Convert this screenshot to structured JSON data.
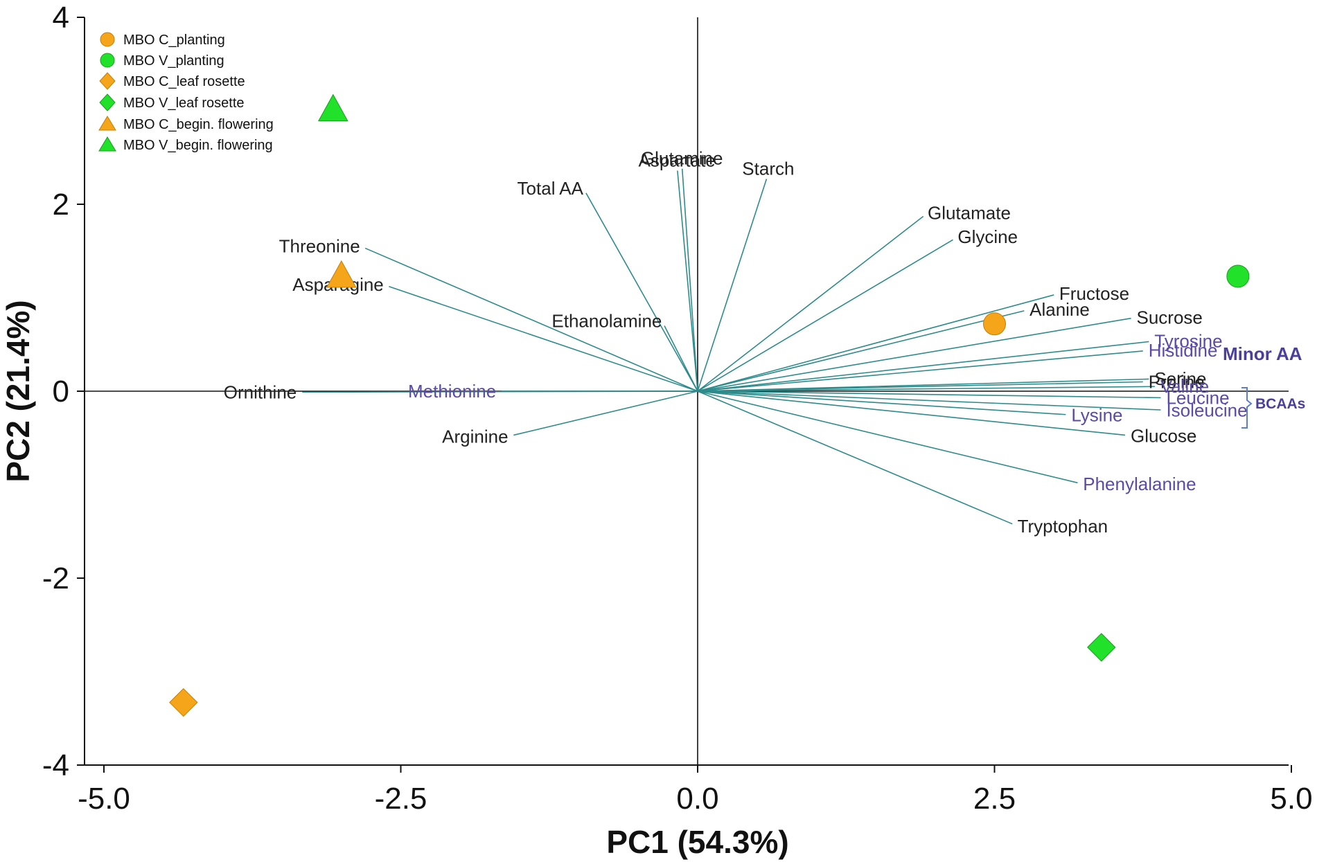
{
  "chart_data": {
    "type": "biplot",
    "xlabel": "PC1 (54.3%)",
    "ylabel": "PC2 (21.4%)",
    "xlim": [
      -5.0,
      5.0
    ],
    "ylim": [
      -4.0,
      4.0
    ],
    "xticks": [
      -5.0,
      -2.5,
      0.0,
      2.5,
      5.0
    ],
    "xtick_labels": [
      "-5.0",
      "-2.5",
      "0.0",
      "2.5",
      "5.0"
    ],
    "yticks": [
      -4,
      -2,
      0,
      2,
      4
    ],
    "ytick_labels": [
      "-4",
      "-2",
      "0",
      "2",
      "4"
    ],
    "colors": {
      "vector": "#2e8b8b",
      "minor_aa": "#5b4aa8",
      "orange": "#f5a51a",
      "green": "#22e12a",
      "axis": "#111111"
    },
    "scores": [
      {
        "name": "MBO C_planting",
        "shape": "circle",
        "color": "#f5a51a",
        "x": 2.5,
        "y": 0.72
      },
      {
        "name": "MBO V_planting",
        "shape": "circle",
        "color": "#22e12a",
        "x": 4.55,
        "y": 1.23
      },
      {
        "name": "MBO C_leaf rosette",
        "shape": "diamond",
        "color": "#f5a51a",
        "x": -4.33,
        "y": -3.33
      },
      {
        "name": "MBO V_leaf rosette",
        "shape": "diamond",
        "color": "#22e12a",
        "x": 3.4,
        "y": -2.74
      },
      {
        "name": "MBO C_begin. flowering",
        "shape": "triangle",
        "color": "#f5a51a",
        "x": -3.0,
        "y": 1.23
      },
      {
        "name": "MBO V_begin. flowering",
        "shape": "triangle",
        "color": "#22e12a",
        "x": -3.07,
        "y": 3.01
      }
    ],
    "loadings": [
      {
        "name": "Total AA",
        "x": -0.94,
        "y": 2.12,
        "minor": false
      },
      {
        "name": "Aspartate",
        "x": -0.17,
        "y": 2.36,
        "minor": false
      },
      {
        "name": "Glutamine",
        "x": -0.13,
        "y": 2.38,
        "minor": false
      },
      {
        "name": "Starch",
        "x": 0.58,
        "y": 2.27,
        "minor": false
      },
      {
        "name": "Glutamate",
        "x": 1.9,
        "y": 1.87,
        "minor": false
      },
      {
        "name": "Glycine",
        "x": 2.15,
        "y": 1.62,
        "minor": false
      },
      {
        "name": "Fructose",
        "x": 3.0,
        "y": 1.03,
        "minor": false
      },
      {
        "name": "Alanine",
        "x": 2.75,
        "y": 0.86,
        "minor": false
      },
      {
        "name": "Sucrose",
        "x": 3.65,
        "y": 0.78,
        "minor": false
      },
      {
        "name": "Tyrosine",
        "x": 3.8,
        "y": 0.53,
        "minor": true
      },
      {
        "name": "Histidine",
        "x": 3.75,
        "y": 0.43,
        "minor": true
      },
      {
        "name": "Proline",
        "x": 3.75,
        "y": 0.1,
        "minor": false
      },
      {
        "name": "Serine",
        "x": 3.8,
        "y": 0.13,
        "minor": false
      },
      {
        "name": "Valine",
        "x": 3.85,
        "y": 0.05,
        "minor": true
      },
      {
        "name": "Leucine",
        "x": 3.9,
        "y": -0.07,
        "minor": true
      },
      {
        "name": "Lysine",
        "x": 3.1,
        "y": -0.25,
        "minor": true
      },
      {
        "name": "Isoleucine",
        "x": 3.9,
        "y": -0.2,
        "minor": true
      },
      {
        "name": "Glucose",
        "x": 3.6,
        "y": -0.47,
        "minor": false
      },
      {
        "name": "Phenylalanine",
        "x": 3.2,
        "y": -0.98,
        "minor": true
      },
      {
        "name": "Tryptophan",
        "x": 2.65,
        "y": -1.42,
        "minor": false
      },
      {
        "name": "Threonine",
        "x": -2.8,
        "y": 1.53,
        "minor": false
      },
      {
        "name": "Asparagine",
        "x": -2.6,
        "y": 1.12,
        "minor": false
      },
      {
        "name": "Ethanolamine",
        "x": -0.28,
        "y": 0.7,
        "minor": false
      },
      {
        "name": "Methionine",
        "x": -1.65,
        "y": 0.0,
        "minor": true
      },
      {
        "name": "Ornithine",
        "x": -3.33,
        "y": -0.01,
        "minor": false
      },
      {
        "name": "Arginine",
        "x": -1.55,
        "y": -0.47,
        "minor": false
      }
    ],
    "annotations": [
      {
        "text": "Minor AA"
      },
      {
        "text": "BCAAs"
      }
    ]
  }
}
